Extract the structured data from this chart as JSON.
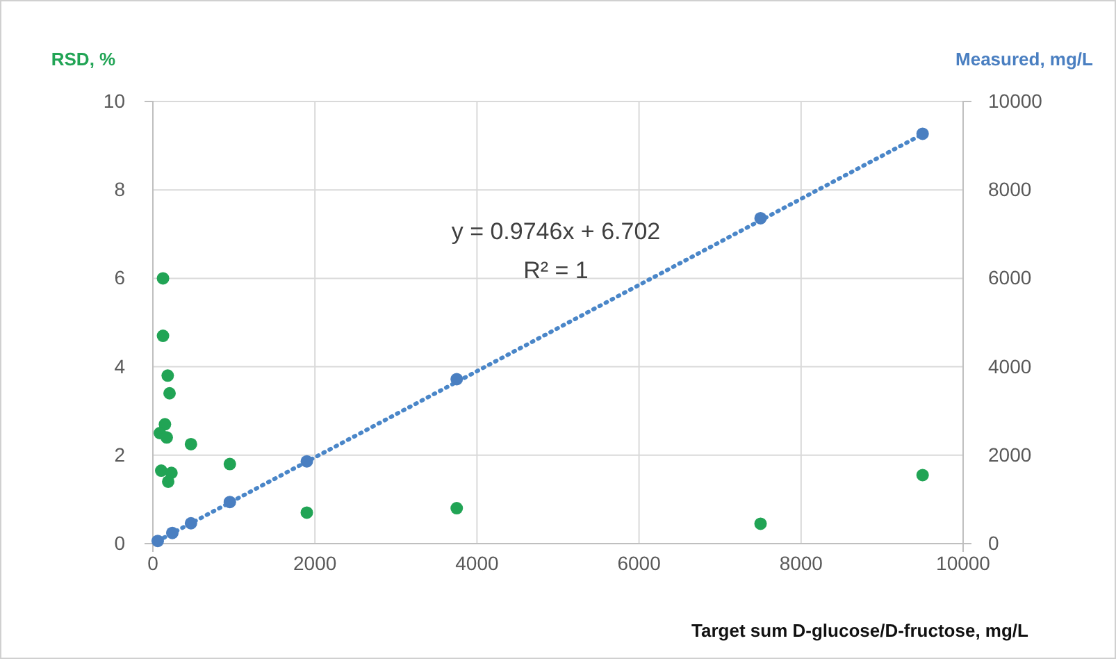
{
  "chart_data": {
    "type": "scatter",
    "xlabel": "Target sum D-glucose/D-fructose, mg/L",
    "ylabel": "RSD, %",
    "y2label": "Measured, mg/L",
    "xlim": [
      0,
      10000
    ],
    "xticks": [
      0,
      2000,
      4000,
      6000,
      8000,
      10000
    ],
    "ylim": [
      0,
      10
    ],
    "yticks": [
      0,
      2,
      4,
      6,
      8,
      10
    ],
    "y2lim": [
      0,
      10000
    ],
    "y2ticks": [
      0,
      2000,
      4000,
      6000,
      8000,
      10000
    ],
    "grid": true,
    "marker": "circle",
    "annotations": [
      "y = 0.9746x + 6.702",
      "R² = 1"
    ],
    "series": [
      {
        "type": "line",
        "axis": "y2",
        "color": "#4a86c8",
        "line_style": "dotted",
        "marker": "none",
        "x": [
          60,
          9500
        ],
        "values": [
          60,
          9260
        ]
      },
      {
        "type": "scatter",
        "axis": "y2",
        "color": "#4a7fc1",
        "x": [
          60,
          240,
          470,
          950,
          1900,
          3750,
          7500,
          9500
        ],
        "values": [
          60,
          240,
          460,
          940,
          1860,
          3720,
          7360,
          9270
        ]
      },
      {
        "color": "#21a455",
        "x": [
          125,
          125,
          183,
          206,
          149,
          86,
          171,
          470,
          950,
          103,
          229,
          189,
          1900,
          3750,
          7500,
          9500
        ],
        "values": [
          6.0,
          4.7,
          3.8,
          3.4,
          2.7,
          2.5,
          2.4,
          2.25,
          1.8,
          1.65,
          1.6,
          1.4,
          0.7,
          0.8,
          0.45,
          1.55
        ]
      }
    ]
  }
}
